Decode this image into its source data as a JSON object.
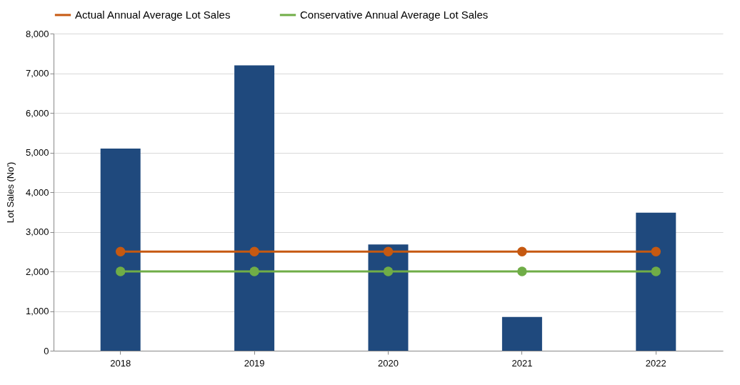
{
  "chart_data": {
    "type": "bar",
    "ylabel": "Lot Sales (No')",
    "categories": [
      "2018",
      "2019",
      "2020",
      "2021",
      "2022"
    ],
    "series": [
      {
        "color": "#1f497d",
        "values": [
          5100,
          7200,
          2680,
          850,
          3480
        ]
      },
      {
        "type": "line",
        "name": "Actual Annual Average Lot Sales",
        "color": "#c65911",
        "values": [
          2500,
          2500,
          2500,
          2500,
          2500
        ]
      },
      {
        "type": "line",
        "name": "Conservative Annual Average Lot Sales",
        "color": "#70ad47",
        "values": [
          2000,
          2000,
          2000,
          2000,
          2000
        ]
      }
    ],
    "ylim": [
      0,
      8000
    ],
    "yticks": [
      0,
      {
        "value": 1000,
        "label": "1,000"
      },
      {
        "value": 2000,
        "label": "2,000"
      },
      {
        "value": 3000,
        "label": "3,000"
      },
      {
        "value": 4000,
        "label": "4,000"
      },
      {
        "value": 5000,
        "label": "5,000"
      },
      {
        "value": 6000,
        "label": "6,000"
      },
      {
        "value": 7000,
        "label": "7,000"
      },
      {
        "value": 8000,
        "label": "8,000"
      }
    ],
    "grid": "y",
    "legend": "top",
    "marker": "circle",
    "line_style": "solid"
  }
}
